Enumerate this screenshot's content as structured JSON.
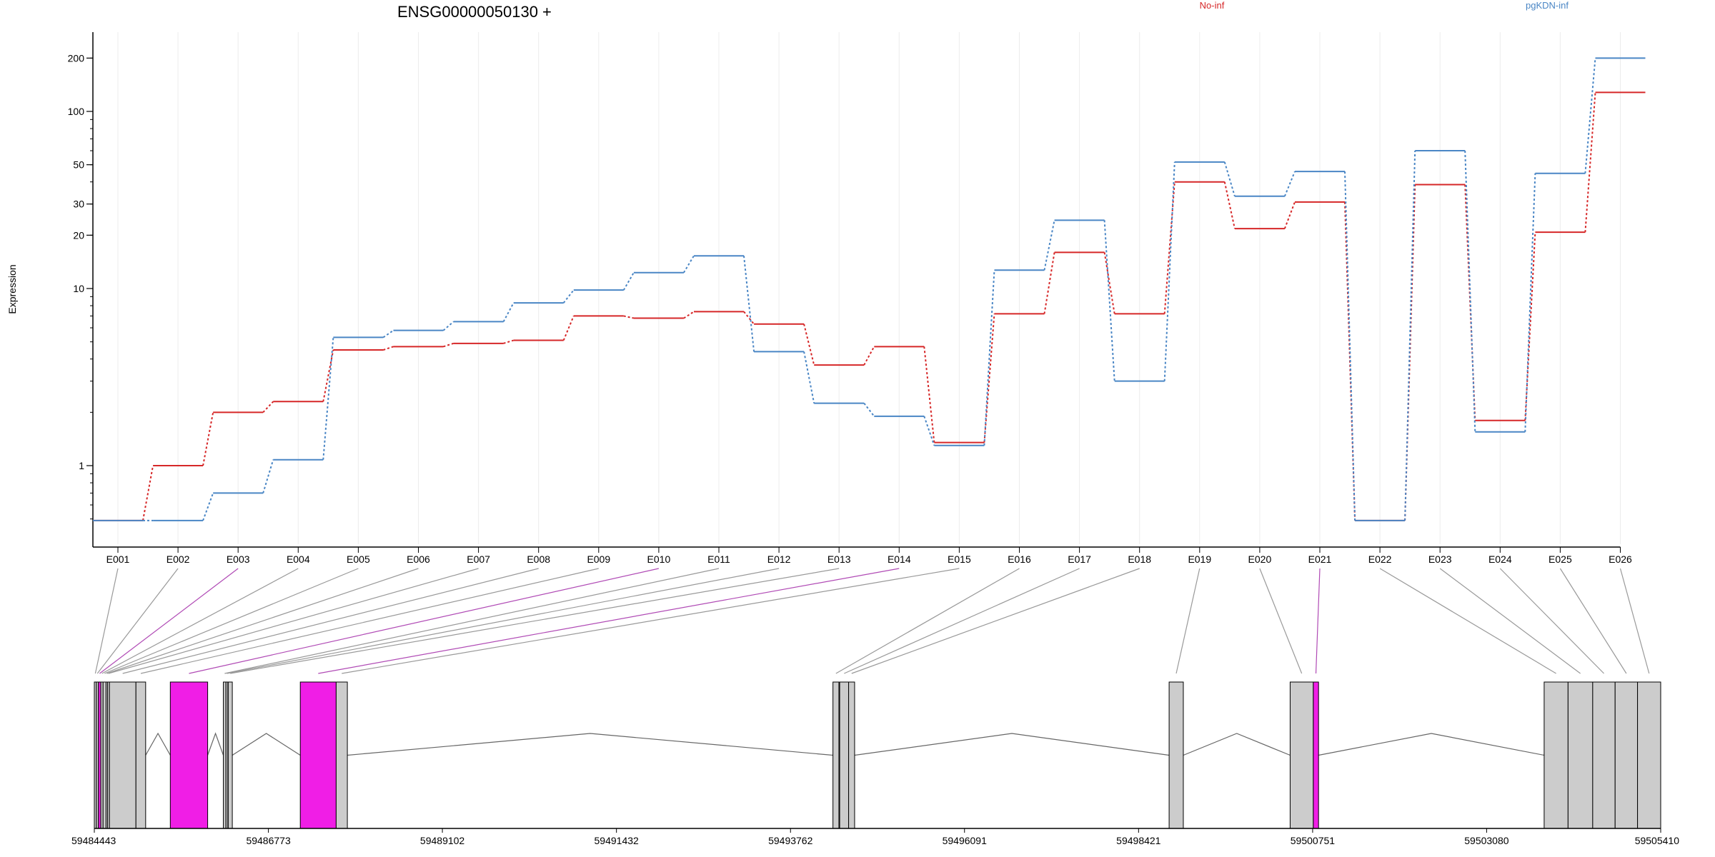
{
  "chart_data": {
    "type": "line",
    "title": "ENSG00000050130 +",
    "ylabel": "Expression",
    "yscale": "log",
    "ylim": [
      0.4,
      300
    ],
    "yticks": [
      1,
      10,
      20,
      30,
      50,
      100,
      200
    ],
    "grid": "vertical, per exon",
    "legend_position": "top-right",
    "categories": [
      "E001",
      "E002",
      "E003",
      "E004",
      "E005",
      "E006",
      "E007",
      "E008",
      "E009",
      "E010",
      "E011",
      "E012",
      "E013",
      "E014",
      "E015",
      "E016",
      "E017",
      "E018",
      "E019",
      "E020",
      "E021",
      "E022",
      "E023",
      "E024",
      "E025",
      "E026"
    ],
    "series": [
      {
        "name": "No-inf",
        "color": "#d62728",
        "values": [
          0.49,
          1.0,
          2.0,
          2.3,
          4.5,
          4.7,
          4.9,
          5.1,
          7.0,
          6.8,
          7.4,
          6.3,
          3.7,
          4.7,
          1.35,
          7.2,
          16.0,
          7.2,
          40.0,
          21.8,
          30.8,
          0.49,
          38.6,
          1.8,
          20.8,
          128.0
        ]
      },
      {
        "name": "pgKDN-inf",
        "color": "#4a86c5",
        "values": [
          0.49,
          0.49,
          0.7,
          1.08,
          5.3,
          5.8,
          6.5,
          8.3,
          9.8,
          12.3,
          15.3,
          4.4,
          2.25,
          1.9,
          1.3,
          12.7,
          24.3,
          3.0,
          51.8,
          33.2,
          45.8,
          0.49,
          60.0,
          1.55,
          44.7,
          200.0
        ]
      }
    ]
  },
  "gene_model": {
    "x_ticks": [
      "59484443",
      "59486773",
      "59489102",
      "59491432",
      "59493762",
      "59496091",
      "59498421",
      "59500751",
      "59503080",
      "59505410"
    ],
    "x_range": [
      59484443,
      59505410
    ],
    "colors": {
      "exon": "#cccccc",
      "highlight": "#f01ee6",
      "connector": "#999999",
      "connector_highlight": "#b04ab5"
    },
    "exons": [
      {
        "id": "E001",
        "start": 59484443,
        "end": 59484470,
        "highlight": false
      },
      {
        "id": "E002",
        "start": 59484470,
        "end": 59484498,
        "highlight": false
      },
      {
        "id": "E003",
        "start": 59484498,
        "end": 59484530,
        "highlight": true
      },
      {
        "id": "E004",
        "start": 59484530,
        "end": 59484560,
        "highlight": false
      },
      {
        "id": "E005",
        "start": 59484560,
        "end": 59484600,
        "highlight": false
      },
      {
        "id": "E006",
        "start": 59484600,
        "end": 59484620,
        "highlight": false
      },
      {
        "id": "E007",
        "start": 59484620,
        "end": 59484645,
        "highlight": false
      },
      {
        "id": "E008",
        "start": 59484645,
        "end": 59485000,
        "highlight": false
      },
      {
        "id": "E009",
        "start": 59485000,
        "end": 59485130,
        "highlight": false
      },
      {
        "id": "E010",
        "start": 59485460,
        "end": 59485960,
        "highlight": true
      },
      {
        "id": "E011",
        "start": 59486170,
        "end": 59486205,
        "highlight": false
      },
      {
        "id": "E012",
        "start": 59486205,
        "end": 59486230,
        "highlight": false
      },
      {
        "id": "E013",
        "start": 59486235,
        "end": 59486290,
        "highlight": false
      },
      {
        "id": "E014",
        "start": 59487200,
        "end": 59487680,
        "highlight": true
      },
      {
        "id": "E015",
        "start": 59487680,
        "end": 59487830,
        "highlight": false
      },
      {
        "id": "E016",
        "start": 59494330,
        "end": 59494410,
        "highlight": false
      },
      {
        "id": "E017",
        "start": 59494420,
        "end": 59494540,
        "highlight": false
      },
      {
        "id": "E018",
        "start": 59494540,
        "end": 59494620,
        "highlight": false
      },
      {
        "id": "E019",
        "start": 59498830,
        "end": 59499020,
        "highlight": false
      },
      {
        "id": "E020",
        "start": 59500450,
        "end": 59500760,
        "highlight": false
      },
      {
        "id": "E021",
        "start": 59500760,
        "end": 59500830,
        "highlight": true
      },
      {
        "id": "E022",
        "start": 59503850,
        "end": 59504170,
        "highlight": false
      },
      {
        "id": "E023",
        "start": 59504170,
        "end": 59504500,
        "highlight": false
      },
      {
        "id": "E024",
        "start": 59504500,
        "end": 59504800,
        "highlight": false
      },
      {
        "id": "E025",
        "start": 59504800,
        "end": 59505100,
        "highlight": false
      },
      {
        "id": "E026",
        "start": 59505100,
        "end": 59505410,
        "highlight": false
      }
    ]
  }
}
